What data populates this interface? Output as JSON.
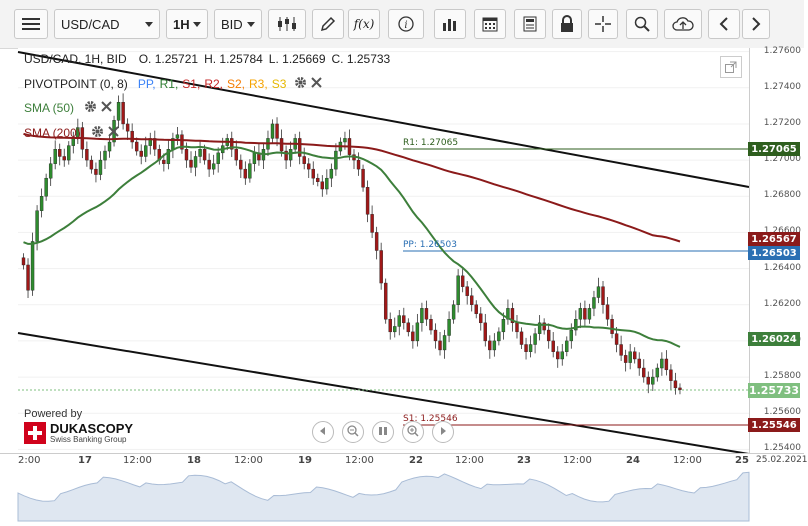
{
  "toolbar": {
    "symbol": "USD/CAD",
    "timeframe": "1H",
    "price_side": "BID",
    "function_icon_label": "f(x)"
  },
  "ohlc": {
    "label": "USD/CAD, 1H, BID",
    "open": "O. 1.25721",
    "high": "H. 1.25784",
    "low": "L. 1.25669",
    "close": "C. 1.25733"
  },
  "indicators": {
    "pivot": {
      "label": "PIVOTPOINT (0, 8)",
      "levels": [
        {
          "text": "PP,",
          "color": "#3b82f6"
        },
        {
          "text": "R1,",
          "color": "#2e7d32"
        },
        {
          "text": "S1,",
          "color": "#c62828"
        },
        {
          "text": "R2,",
          "color": "#c62828"
        },
        {
          "text": "S2,",
          "color": "#f57c00"
        },
        {
          "text": "R3,",
          "color": "#f5a300"
        },
        {
          "text": "S3",
          "color": "#e6b800"
        }
      ]
    },
    "sma50": {
      "label": "SMA (50)",
      "color": "#3d7f3b"
    },
    "sma200": {
      "label": "SMA (200)",
      "color": "#8b1a1a"
    }
  },
  "levels": {
    "r1": {
      "label": "R1: 1.27065",
      "value": "1.27065",
      "color": "#2e5e1e"
    },
    "pp": {
      "label": "PP: 1.26503",
      "value": "1.26503",
      "color": "#2a6fb3"
    },
    "s1": {
      "label": "S1: 1.25546",
      "value": "1.25546",
      "color": "#8b1a1a"
    },
    "sma200_value": {
      "value": "1.26567",
      "color": "#8b1a1a"
    },
    "sma50_value": {
      "value": "1.26024",
      "color": "#3d7f3b"
    },
    "last": {
      "value": "1.25733",
      "color": "#7fbf7f"
    }
  },
  "price_axis": [
    "1.27600",
    "1.27400",
    "1.27200",
    "1.27000",
    "1.26800",
    "1.26600",
    "1.26400",
    "1.26200",
    "1.26000",
    "1.25800",
    "1.25600",
    "1.25400"
  ],
  "time_axis": [
    "2:00",
    "17",
    "12:00",
    "18",
    "12:00",
    "19",
    "12:00",
    "22",
    "12:00",
    "23",
    "12:00",
    "24",
    "12:00",
    "25"
  ],
  "date_label": "25.02.2021",
  "branding": {
    "powered_by": "Powered by",
    "name": "DUKASCOPY",
    "tagline": "Swiss Banking Group"
  },
  "chart_data": {
    "type": "candlestick",
    "symbol": "USD/CAD",
    "interval": "1H",
    "last_close": 1.25733,
    "ylim": [
      1.2538,
      1.2762
    ],
    "horizontal_levels": {
      "R1": 1.27065,
      "PP": 1.26503,
      "S1": 1.25546
    },
    "sma50_last": 1.26024,
    "sma200_last": 1.26567,
    "closes": [
      1.2642,
      1.2628,
      1.2655,
      1.2672,
      1.268,
      1.269,
      1.2698,
      1.2706,
      1.2702,
      1.27,
      1.2708,
      1.2712,
      1.2718,
      1.2706,
      1.27,
      1.2695,
      1.2692,
      1.27,
      1.2705,
      1.271,
      1.2722,
      1.2732,
      1.272,
      1.2716,
      1.271,
      1.2705,
      1.2702,
      1.2708,
      1.2712,
      1.2706,
      1.27,
      1.2698,
      1.2706,
      1.2712,
      1.2714,
      1.2706,
      1.27,
      1.2696,
      1.2702,
      1.2706,
      1.27,
      1.2695,
      1.2698,
      1.2704,
      1.2708,
      1.2712,
      1.2706,
      1.27,
      1.2695,
      1.269,
      1.2698,
      1.2704,
      1.27,
      1.2706,
      1.2712,
      1.272,
      1.2712,
      1.2705,
      1.27,
      1.2706,
      1.2712,
      1.2702,
      1.2698,
      1.2695,
      1.269,
      1.2688,
      1.2684,
      1.269,
      1.2695,
      1.2705,
      1.271,
      1.2712,
      1.2703,
      1.27,
      1.2695,
      1.2685,
      1.267,
      1.266,
      1.265,
      1.2632,
      1.2612,
      1.2605,
      1.2608,
      1.2614,
      1.261,
      1.2605,
      1.26,
      1.261,
      1.2618,
      1.2612,
      1.2606,
      1.26,
      1.2595,
      1.2603,
      1.2612,
      1.262,
      1.2636,
      1.263,
      1.2625,
      1.262,
      1.2615,
      1.261,
      1.26,
      1.2595,
      1.26,
      1.2605,
      1.2612,
      1.2618,
      1.261,
      1.2605,
      1.2598,
      1.2594,
      1.2598,
      1.2604,
      1.261,
      1.2606,
      1.26,
      1.2594,
      1.259,
      1.2594,
      1.26,
      1.2606,
      1.2612,
      1.2618,
      1.2612,
      1.2618,
      1.2624,
      1.263,
      1.262,
      1.2612,
      1.2604,
      1.2598,
      1.2592,
      1.2588,
      1.2594,
      1.259,
      1.2585,
      1.258,
      1.2576,
      1.258,
      1.2585,
      1.259,
      1.2584,
      1.2578,
      1.2574,
      1.2573
    ]
  }
}
